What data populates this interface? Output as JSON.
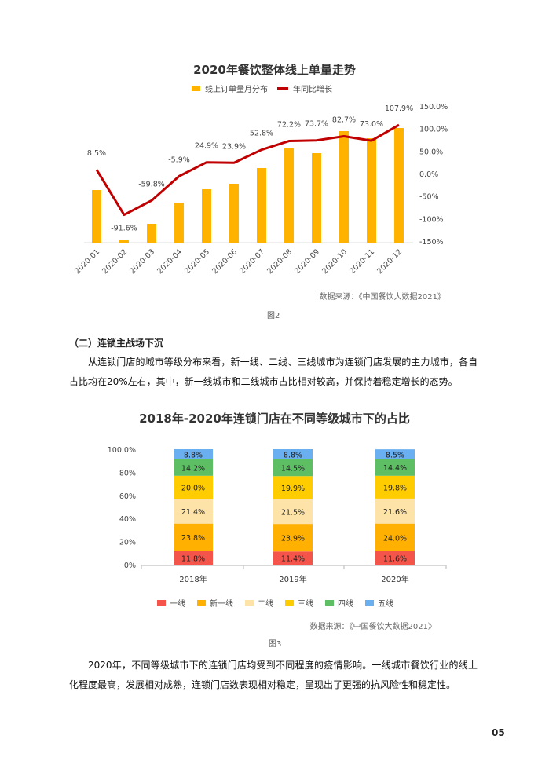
{
  "chart_data": [
    {
      "type": "bar+line",
      "title": "2020年餐饮整体线上单量走势",
      "categories": [
        "2020-01",
        "2020-02",
        "2020-03",
        "2020-04",
        "2020-05",
        "2020-06",
        "2020-07",
        "2020-08",
        "2020-09",
        "2020-10",
        "2020-11",
        "2020-12"
      ],
      "series": [
        {
          "name": "线上订单量月分布",
          "type": "bar",
          "color": "#FFB300",
          "values": [
            67,
            3,
            24,
            51,
            68,
            75,
            95,
            120,
            114,
            142,
            133,
            146
          ]
        },
        {
          "name": "年同比增长",
          "type": "line",
          "axis": "right",
          "color": "#C00000",
          "values": [
            8.5,
            -91.6,
            -59.8,
            -5.9,
            24.9,
            23.9,
            52.8,
            72.2,
            73.7,
            82.7,
            73.0,
            107.9
          ],
          "labels": [
            "8.5%",
            "-91.6%",
            "-59.8%",
            "-5.9%",
            "24.9%",
            "23.9%",
            "52.8%",
            "72.2%",
            "73.7%",
            "82.7%",
            "73.0%",
            "107.9%"
          ]
        }
      ],
      "y2_ticks": [
        "150.0%",
        "100.0%",
        "50.0%",
        "0.0%",
        "-50%",
        "-100%",
        "-150%"
      ],
      "y2lim": [
        -150,
        150
      ],
      "legend": "top",
      "grid": false
    },
    {
      "type": "stacked-bar",
      "title": "2018年-2020年连锁门店在不同等级城市下的占比",
      "categories": [
        "2018年",
        "2019年",
        "2020年"
      ],
      "y_ticks": [
        "100.0%",
        "80%",
        "60%",
        "40%",
        "20%",
        "0%"
      ],
      "ylim": [
        0,
        100
      ],
      "series": [
        {
          "name": "一线",
          "color": "#F4544A",
          "values": [
            11.8,
            11.4,
            11.6
          ],
          "labels": [
            "11.8%",
            "11.4%",
            "11.6%"
          ]
        },
        {
          "name": "新一线",
          "color": "#FFB000",
          "values": [
            23.8,
            23.9,
            24.0
          ],
          "labels": [
            "23.8%",
            "23.9%",
            "24.0%"
          ]
        },
        {
          "name": "二线",
          "color": "#FDE3A7",
          "values": [
            21.4,
            21.5,
            21.6
          ],
          "labels": [
            "21.4%",
            "21.5%",
            "21.6%"
          ]
        },
        {
          "name": "三线",
          "color": "#FFCC00",
          "values": [
            20.0,
            19.9,
            19.8
          ],
          "labels": [
            "20.0%",
            "19.9%",
            "19.8%"
          ]
        },
        {
          "name": "四线",
          "color": "#5DBE64",
          "values": [
            14.2,
            14.5,
            14.4
          ],
          "labels": [
            "14.2%",
            "14.5%",
            "14.4%"
          ]
        },
        {
          "name": "五线",
          "color": "#6AAFF0",
          "values": [
            8.8,
            8.8,
            8.5
          ],
          "labels": [
            "8.8%",
            "8.8%",
            "8.5%"
          ]
        }
      ],
      "legend": "bottom",
      "grid": false
    }
  ],
  "figure2": {
    "source": "数据来源：《中国餐饮大数据2021》",
    "caption": "图2"
  },
  "section": {
    "heading": "（二）连锁主战场下沉",
    "para1": "从连锁门店的城市等级分布来看，新一线、二线、三线城市为连锁门店发展的主力城市，各自占比均在20%左右，其中，新一线城市和二线城市占比相对较高，并保持着稳定增长的态势。"
  },
  "figure3": {
    "source": "数据来源：《中国餐饮大数据2021》",
    "caption": "图3"
  },
  "para2": "2020年，不同等级城市下的连锁门店均受到不同程度的疫情影响。一线城市餐饮行业的线上化程度最高，发展相对成熟，连锁门店数表现相对稳定，呈现出了更强的抗风险性和稳定性。",
  "page_number": "05"
}
